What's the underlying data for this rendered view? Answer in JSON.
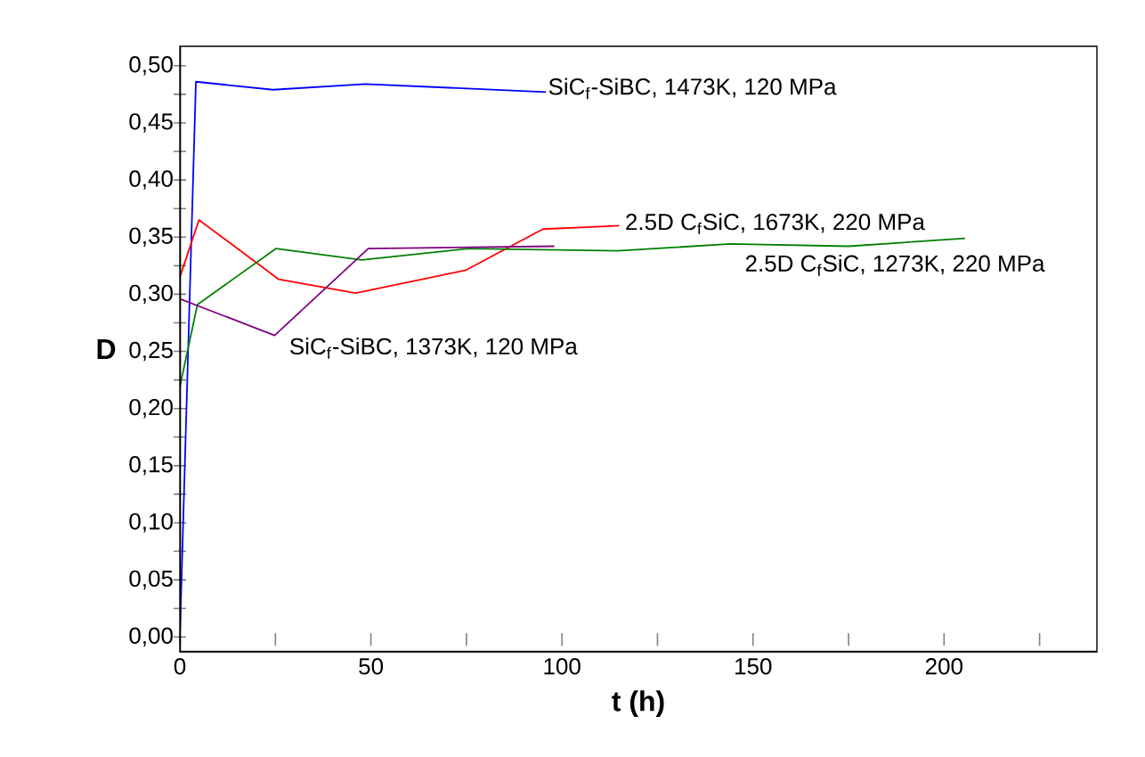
{
  "chart_data": {
    "type": "line",
    "xlabel": "t (h)",
    "ylabel": "D",
    "xlim": [
      0,
      240
    ],
    "ylim": [
      -0.013,
      0.517
    ],
    "xticks": [
      0,
      {
        "value": 25,
        "label": null
      },
      50,
      {
        "value": 75,
        "label": null
      },
      100,
      {
        "value": 125,
        "label": null
      },
      150,
      {
        "value": 175,
        "label": null
      },
      200,
      {
        "value": 225,
        "label": null
      }
    ],
    "yticks": [
      {
        "value": 0.0,
        "label": "0,00"
      },
      {
        "value": 0.025,
        "label": null
      },
      {
        "value": 0.05,
        "label": "0,05"
      },
      {
        "value": 0.075,
        "label": null
      },
      {
        "value": 0.1,
        "label": "0,10"
      },
      {
        "value": 0.125,
        "label": null
      },
      {
        "value": 0.15,
        "label": "0,15"
      },
      {
        "value": 0.175,
        "label": null
      },
      {
        "value": 0.2,
        "label": "0,20"
      },
      {
        "value": 0.225,
        "label": null
      },
      {
        "value": 0.25,
        "label": "0,25"
      },
      {
        "value": 0.275,
        "label": null
      },
      {
        "value": 0.3,
        "label": "0,30"
      },
      {
        "value": 0.325,
        "label": null
      },
      {
        "value": 0.35,
        "label": "0,35"
      },
      {
        "value": 0.375,
        "label": null
      },
      {
        "value": 0.4,
        "label": "0,40"
      },
      {
        "value": 0.425,
        "label": null
      },
      {
        "value": 0.45,
        "label": "0,45"
      },
      {
        "value": 0.475,
        "label": null
      },
      {
        "value": 0.5,
        "label": "0,50"
      }
    ],
    "grid": false,
    "legend": false,
    "marker": "none",
    "line_style": "solid",
    "series": [
      {
        "name": "SiC$_{f}$-SiBC, 1473K, 120 MPa",
        "color": "#0000ff",
        "x": [
          0,
          4.2,
          24.4,
          48.5,
          95.8
        ],
        "values": [
          0.0,
          0.486,
          0.479,
          0.484,
          0.477
        ]
      },
      {
        "name": "2.5D C$_{f}$SiC, 1673K, 220 MPa",
        "color": "#ff0000",
        "x": [
          0,
          5,
          25.9,
          46,
          74.8,
          95,
          115
        ],
        "values": [
          0.315,
          0.365,
          0.313,
          0.301,
          0.321,
          0.357,
          0.36
        ]
      },
      {
        "name": "2.5D C$_{f}$SiC, 1273K, 220 MPa",
        "color": "#008000",
        "x": [
          0,
          4.6,
          25.2,
          47.6,
          75.6,
          114.5,
          144,
          175,
          205.5
        ],
        "values": [
          0.219,
          0.291,
          0.34,
          0.33,
          0.34,
          0.338,
          0.344,
          0.342,
          0.349
        ]
      },
      {
        "name": "SiC$_{f}$-SiBC, 1373K, 120 MPa",
        "color": "#800080",
        "x": [
          0,
          24.8,
          49.3,
          98
        ],
        "values": [
          0.296,
          0.264,
          0.34,
          0.342
        ]
      }
    ]
  }
}
